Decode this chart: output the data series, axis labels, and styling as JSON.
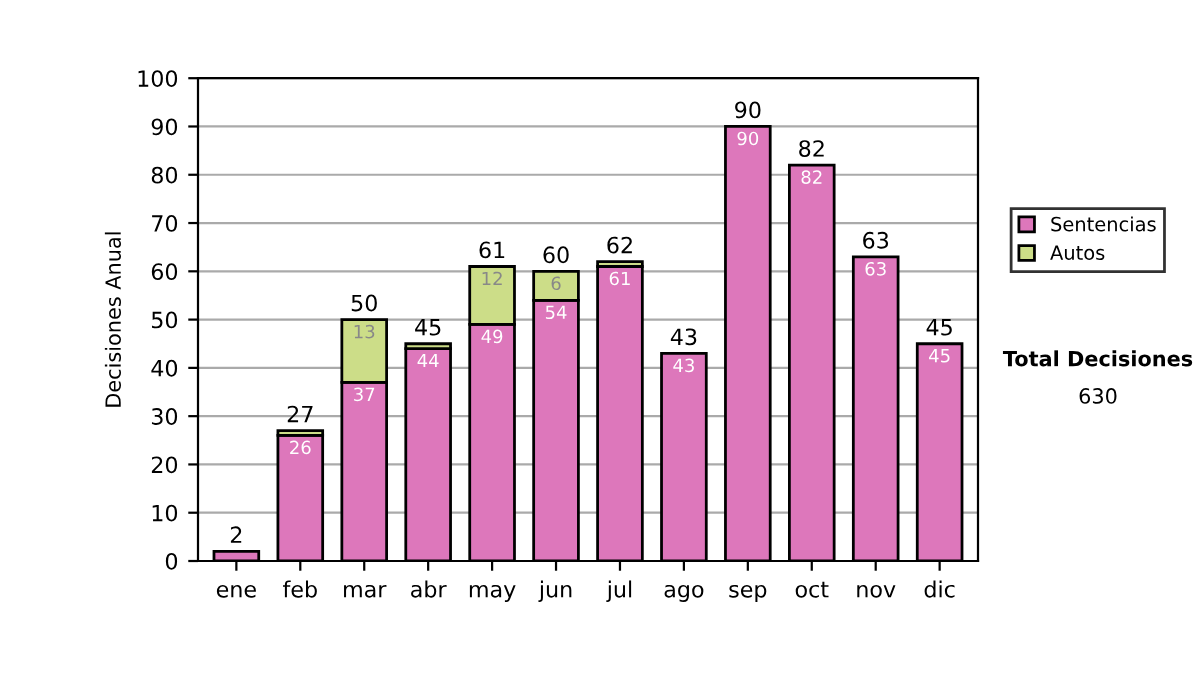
{
  "chart_data": {
    "type": "bar",
    "stacked": true,
    "ylabel": "Decisiones Anual",
    "categories": [
      "ene",
      "feb",
      "mar",
      "abr",
      "may",
      "jun",
      "jul",
      "ago",
      "sep",
      "oct",
      "nov",
      "dic"
    ],
    "series": [
      {
        "name": "Sentencias",
        "color": "#dd77bb",
        "values": [
          2,
          26,
          37,
          44,
          49,
          54,
          61,
          43,
          90,
          82,
          63,
          45
        ],
        "value_labels": [
          null,
          "26",
          "37",
          "44",
          "49",
          "54",
          "61",
          "43",
          "90",
          "82",
          "63",
          "45"
        ]
      },
      {
        "name": "Autos",
        "color": "#ccdd88",
        "values": [
          null,
          1,
          13,
          1,
          12,
          6,
          1,
          null,
          null,
          null,
          null,
          null
        ],
        "value_labels": [
          null,
          null,
          "13",
          null,
          "12",
          "6",
          null,
          null,
          null,
          null,
          null,
          null
        ]
      }
    ],
    "totals": [
      "2",
      "27",
      "50",
      "45",
      "61",
      "60",
      "62",
      "43",
      "90",
      "82",
      "63",
      "45"
    ],
    "ylim": [
      0,
      100
    ],
    "yticks": [
      0,
      10,
      20,
      30,
      40,
      50,
      60,
      70,
      80,
      90,
      100
    ],
    "grid": "y",
    "legend": "right",
    "annotations": [
      "Total Decisiones",
      "630"
    ]
  }
}
